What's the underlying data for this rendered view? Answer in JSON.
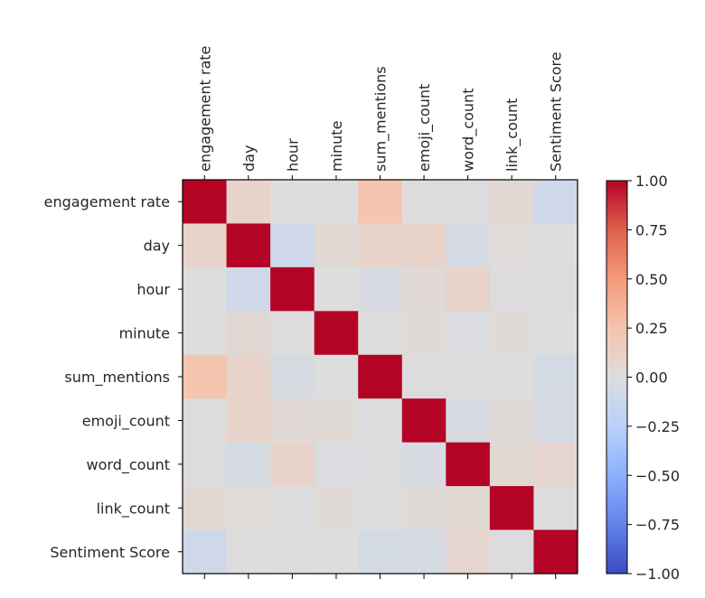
{
  "chart_data": {
    "type": "heatmap",
    "title": "",
    "xlabel": "",
    "ylabel": "",
    "x_labels": [
      "engagement rate",
      "day",
      "hour",
      "minute",
      "sum_mentions",
      "emoji_count",
      "word_count",
      "link_count",
      "Sentiment Score"
    ],
    "y_labels": [
      "engagement rate",
      "day",
      "hour",
      "minute",
      "sum_mentions",
      "emoji_count",
      "word_count",
      "link_count",
      "Sentiment Score"
    ],
    "x_tick_position": "top",
    "x_tick_rotation": 90,
    "colormap": "coolwarm",
    "vmin": -1.0,
    "vmax": 1.0,
    "colorbar": {
      "placement": "right",
      "ticks": [
        1.0,
        0.75,
        0.5,
        0.25,
        0.0,
        -0.25,
        -0.5,
        -0.75,
        -1.0
      ],
      "tick_labels": [
        "1.00",
        "0.75",
        "0.50",
        "0.25",
        "0.00",
        "−0.25",
        "−0.50",
        "−0.75",
        "−1.00"
      ]
    },
    "values": [
      [
        1.0,
        0.1,
        0.0,
        0.0,
        0.24,
        0.01,
        -0.01,
        0.05,
        -0.1
      ],
      [
        0.1,
        1.0,
        -0.1,
        0.05,
        0.1,
        0.1,
        -0.05,
        0.02,
        0.0
      ],
      [
        0.0,
        -0.1,
        1.0,
        0.0,
        -0.04,
        0.04,
        0.1,
        -0.01,
        -0.01
      ],
      [
        0.0,
        0.05,
        0.0,
        1.0,
        0.0,
        0.03,
        -0.02,
        0.03,
        0.0
      ],
      [
        0.24,
        0.1,
        -0.04,
        0.0,
        1.0,
        -0.01,
        -0.01,
        0.0,
        -0.06
      ],
      [
        0.01,
        0.1,
        0.04,
        0.03,
        -0.01,
        1.0,
        -0.04,
        0.03,
        -0.05
      ],
      [
        -0.01,
        -0.05,
        0.1,
        -0.02,
        -0.01,
        -0.04,
        1.0,
        0.05,
        0.08
      ],
      [
        0.05,
        0.02,
        -0.01,
        0.03,
        0.0,
        0.03,
        0.05,
        1.0,
        -0.01
      ],
      [
        -0.1,
        0.0,
        -0.01,
        0.0,
        -0.06,
        -0.05,
        0.08,
        -0.01,
        1.0
      ]
    ],
    "grid": false
  }
}
